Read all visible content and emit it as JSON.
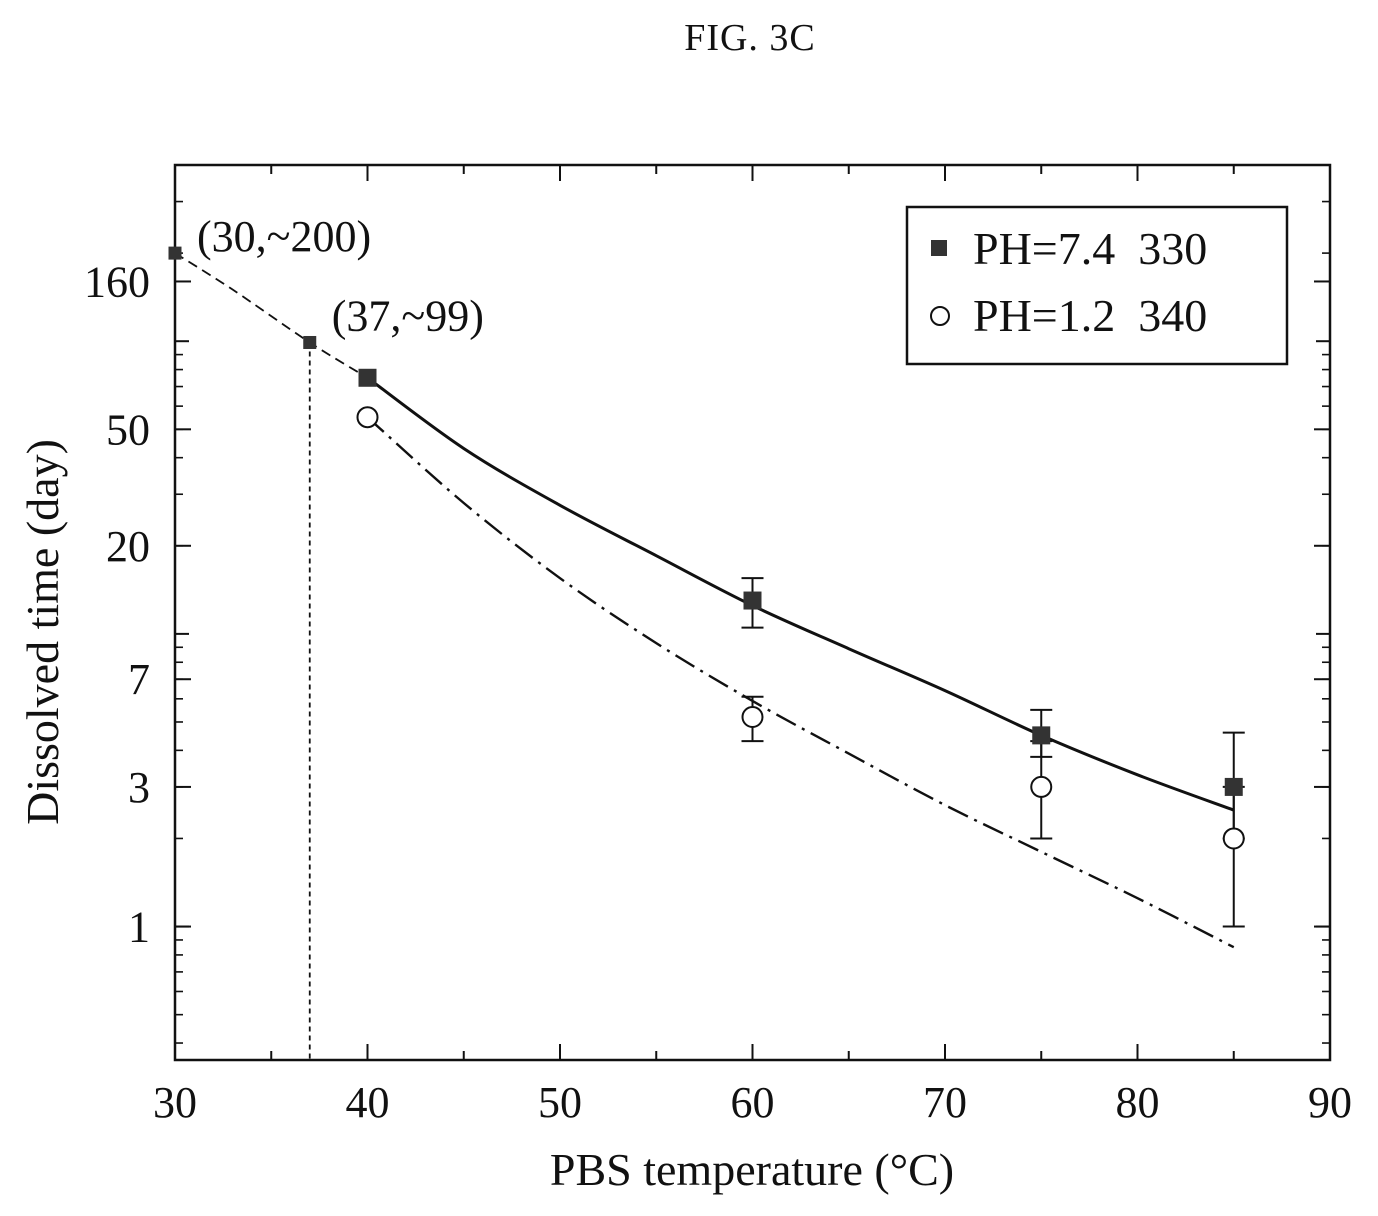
{
  "figure": {
    "title": "FIG. 3C"
  },
  "chart_data": {
    "type": "scatter",
    "xlabel": "PBS temperature (°C)",
    "ylabel": "Dissolved time (day)",
    "xlim": [
      30,
      90
    ],
    "ylim": [
      0.35,
      400
    ],
    "yscale": "log",
    "x_ticks": [
      30,
      40,
      50,
      60,
      70,
      80,
      90
    ],
    "y_ticks": [
      1,
      3,
      7,
      20,
      50,
      160
    ],
    "grid": false,
    "legend_position": "top-right",
    "series": [
      {
        "name": "PH=7.4  330",
        "marker": "filled-square",
        "color": "#333333",
        "points": [
          {
            "x": 30,
            "y": 200
          },
          {
            "x": 37,
            "y": 99
          },
          {
            "x": 40,
            "y": 75
          },
          {
            "x": 60,
            "y": 13,
            "err_low": 10.5,
            "err_high": 15.5
          },
          {
            "x": 75,
            "y": 4.5,
            "err_low": 3.8,
            "err_high": 5.5
          },
          {
            "x": 85,
            "y": 3,
            "err_low": 2.0,
            "err_high": 4.6
          }
        ],
        "fit": {
          "style": "solid",
          "x": [
            40,
            45,
            50,
            55,
            60,
            65,
            70,
            75,
            80,
            85
          ],
          "y": [
            75,
            43,
            27.5,
            18.5,
            12.5,
            8.9,
            6.4,
            4.5,
            3.3,
            2.5
          ]
        },
        "extrapolation": {
          "style": "dashed",
          "x": [
            30,
            33,
            37,
            40
          ],
          "y": [
            200,
            150,
            99,
            75
          ]
        }
      },
      {
        "name": "PH=1.2  340",
        "marker": "open-circle",
        "color": "#333333",
        "points": [
          {
            "x": 40,
            "y": 55
          },
          {
            "x": 60,
            "y": 5.2,
            "err_low": 4.3,
            "err_high": 6.1
          },
          {
            "x": 75,
            "y": 3,
            "err_low": 2.0,
            "err_high": 4.3
          },
          {
            "x": 85,
            "y": 2,
            "err_low": 1.0,
            "err_high": 3.0
          }
        ],
        "fit": {
          "style": "dash-dot",
          "x": [
            40,
            45,
            50,
            55,
            60,
            65,
            70,
            75,
            80,
            85
          ],
          "y": [
            55,
            28,
            15.5,
            9.3,
            5.9,
            3.9,
            2.6,
            1.8,
            1.25,
            0.85
          ]
        }
      }
    ],
    "reference_line": {
      "x": 37,
      "y_top": 99,
      "style": "dotted-vertical"
    },
    "annotations": [
      {
        "text": "(30,~200)",
        "x": 30,
        "y": 200
      },
      {
        "text": "(37,~99)",
        "x": 37,
        "y": 99
      }
    ]
  }
}
